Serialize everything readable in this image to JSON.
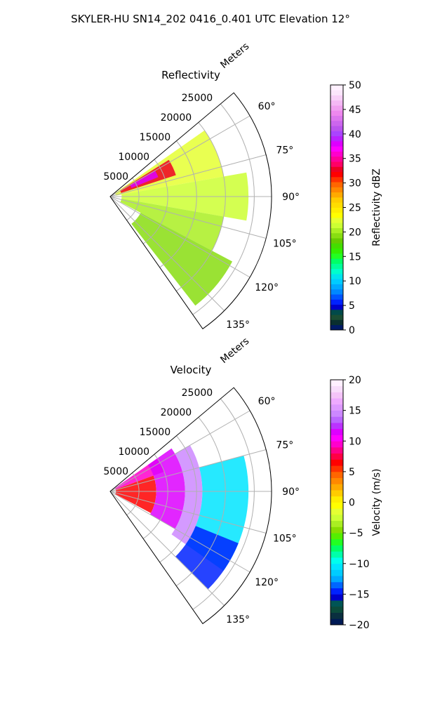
{
  "suptitle": "SKYLER-HU  SN14_202  0416_0.401 UTC Elevation 12°",
  "chart_data": [
    {
      "type": "heatmap",
      "projection": "polar-sector",
      "title": "Reflectivity",
      "range_label": "Meters",
      "range_ticks": [
        5000,
        10000,
        15000,
        20000,
        25000
      ],
      "range_tick_labels": [
        "5000",
        "10000",
        "15000",
        "20000",
        "25000"
      ],
      "rmax": 28000,
      "azimuth_range": [
        50,
        145
      ],
      "azimuth_ticks": [
        60,
        75,
        90,
        105,
        120,
        135
      ],
      "azimuth_tick_labels": [
        "60°",
        "75°",
        "90°",
        "105°",
        "120°",
        "135°"
      ],
      "grid": true,
      "colorbar": {
        "label": "Reflectivity dBZ",
        "min": 0,
        "max": 50,
        "ticks": [
          0,
          5,
          10,
          15,
          20,
          25,
          30,
          35,
          40,
          45,
          50
        ],
        "tick_labels": [
          "0",
          "5",
          "10",
          "15",
          "20",
          "25",
          "30",
          "35",
          "40",
          "45",
          "50"
        ],
        "colors": [
          "#001a66",
          "#0a2f2f",
          "#1a4d33",
          "#004a4a",
          "#0000cc",
          "#0022ff",
          "#0055ff",
          "#0088ff",
          "#00aaff",
          "#00ccff",
          "#00e5ee",
          "#00ffcc",
          "#00ff99",
          "#00ff66",
          "#22ff22",
          "#33ee00",
          "#44dd00",
          "#66cc00",
          "#88dd11",
          "#aaee22",
          "#ccff33",
          "#e5ff33",
          "#ffff00",
          "#ffee00",
          "#ffdd00",
          "#ffcc00",
          "#ffaa00",
          "#ff8800",
          "#ff6600",
          "#ff3300",
          "#ff0000",
          "#ee0022",
          "#ff0066",
          "#ff0099",
          "#ff00cc",
          "#ff00ff",
          "#dd00ff",
          "#bb22ff",
          "#aa44ff",
          "#bb55ee",
          "#cc66ee",
          "#dd77ee",
          "#ee88ee",
          "#f0a0f0",
          "#f4b8f4",
          "#f8d0f8",
          "#fbe6fb",
          "#fff0ff"
        ]
      },
      "value_regions": [
        {
          "az": [
            55,
            80
          ],
          "r": [
            1000,
            20000
          ],
          "value": 22
        },
        {
          "az": [
            80,
            100
          ],
          "r": [
            2000,
            24000
          ],
          "value": 21
        },
        {
          "az": [
            100,
            118
          ],
          "r": [
            2000,
            20000
          ],
          "value": 20
        },
        {
          "az": [
            118,
            142
          ],
          "r": [
            6000,
            24000
          ],
          "value": 19
        },
        {
          "az": [
            58,
            72
          ],
          "r": [
            2000,
            12000
          ],
          "value": 33
        },
        {
          "az": [
            60,
            68
          ],
          "r": [
            4000,
            9000
          ],
          "value": 38
        }
      ]
    },
    {
      "type": "heatmap",
      "projection": "polar-sector",
      "title": "Velocity",
      "range_label": "Meters",
      "range_ticks": [
        5000,
        10000,
        15000,
        20000,
        25000
      ],
      "range_tick_labels": [
        "5000",
        "10000",
        "15000",
        "20000",
        "25000"
      ],
      "rmax": 28000,
      "azimuth_range": [
        50,
        145
      ],
      "azimuth_ticks": [
        60,
        75,
        90,
        105,
        120,
        135
      ],
      "azimuth_tick_labels": [
        "60°",
        "75°",
        "90°",
        "105°",
        "120°",
        "135°"
      ],
      "grid": true,
      "colorbar": {
        "label": "Velocity (m/s)",
        "min": -20,
        "max": 20,
        "ticks": [
          -20,
          -15,
          -10,
          -5,
          0,
          5,
          10,
          15,
          20
        ],
        "tick_labels": [
          "−20",
          "−15",
          "−10",
          "−5",
          "0",
          "5",
          "10",
          "15",
          "20"
        ],
        "colors": [
          "#001a55",
          "#0a2f3f",
          "#0b4b3b",
          "#005555",
          "#0000cc",
          "#0022ff",
          "#0066ff",
          "#00aaff",
          "#00ccff",
          "#00e5ff",
          "#00ffee",
          "#00ffaa",
          "#00ff66",
          "#22ff22",
          "#55ee00",
          "#88dd00",
          "#aaee22",
          "#ccff33",
          "#e5ff33",
          "#ffff00",
          "#ffee00",
          "#ffcc00",
          "#ffaa00",
          "#ff8800",
          "#ff6600",
          "#ff3300",
          "#ff0000",
          "#ff0044",
          "#ff0088",
          "#ff00cc",
          "#ff00ff",
          "#dd00ff",
          "#bb33ff",
          "#bb66ff",
          "#cc88ff",
          "#dd99ff",
          "#eeaaff",
          "#f4c4f8",
          "#f8ddfb",
          "#fff0ff"
        ]
      },
      "value_regions": [
        {
          "az": [
            55,
            70
          ],
          "r": [
            1000,
            10000
          ],
          "value": 9
        },
        {
          "az": [
            70,
            118
          ],
          "r": [
            1000,
            8000
          ],
          "value": 6
        },
        {
          "az": [
            55,
            120
          ],
          "r": [
            8000,
            13000
          ],
          "value": 11
        },
        {
          "az": [
            60,
            125
          ],
          "r": [
            13000,
            16000
          ],
          "value": 14
        },
        {
          "az": [
            75,
            125
          ],
          "r": [
            16000,
            24000
          ],
          "value": -11
        },
        {
          "az": [
            112,
            135
          ],
          "r": [
            16000,
            24000
          ],
          "value": -15
        }
      ]
    }
  ]
}
